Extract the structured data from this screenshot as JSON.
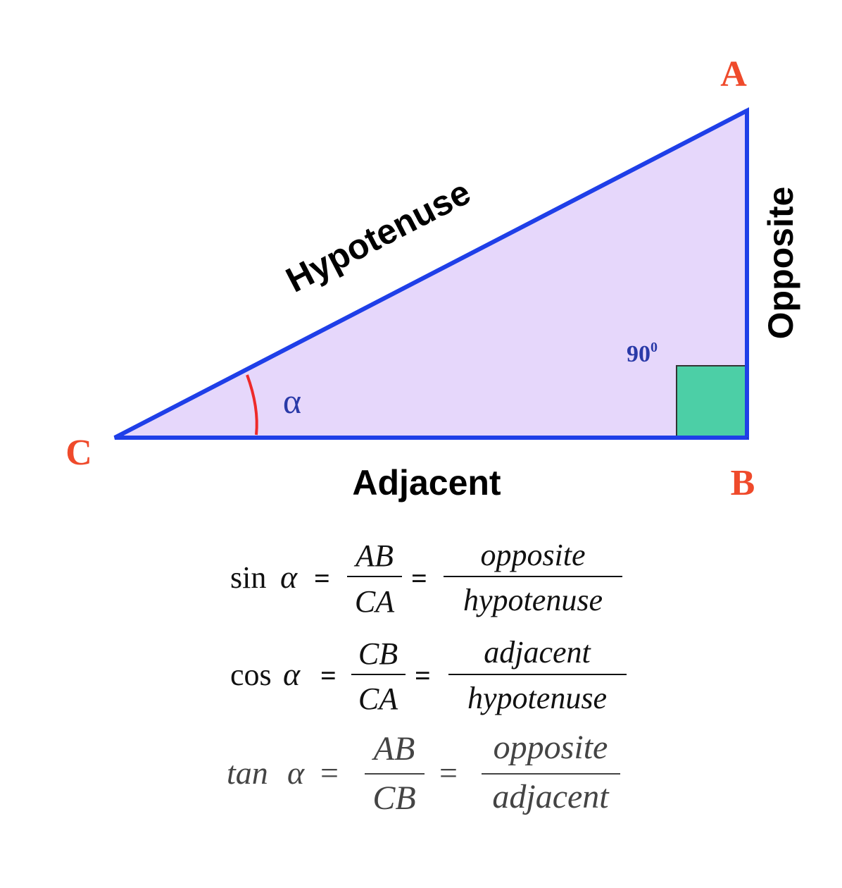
{
  "triangle": {
    "vertices": {
      "a": "A",
      "b": "B",
      "c": "C"
    },
    "sides": {
      "hypotenuse": "Hypotenuse",
      "opposite": "Opposite",
      "adjacent": "Adjacent"
    },
    "angle_label": "α",
    "right_angle": {
      "value": "90",
      "superscript": "0"
    }
  },
  "formulas": {
    "sin": {
      "func": "sin",
      "var": "α",
      "eq": "=",
      "num1": "AB",
      "den1": "CA",
      "num2": "opposite",
      "den2": "hypotenuse"
    },
    "cos": {
      "func": "cos",
      "var": "α",
      "eq": "=",
      "num1": "CB",
      "den1": "CA",
      "num2": "adjacent",
      "den2": "hypotenuse"
    },
    "tan": {
      "func": "tan",
      "var": "α",
      "eq": "=",
      "num1": "AB",
      "den1": "CB",
      "num2": "opposite",
      "den2": "adjacent"
    }
  },
  "colors": {
    "triangle_fill": "#e6d7fb",
    "triangle_stroke": "#1f3fe8",
    "right_angle_fill": "#4ccfa6",
    "vertex_label": "#ef4a2b",
    "angle_arc": "#ee2a2a",
    "angle_label": "#2a3aa8",
    "side_label": "#000000",
    "formula_dark": "#111111",
    "formula_light": "#444444"
  }
}
